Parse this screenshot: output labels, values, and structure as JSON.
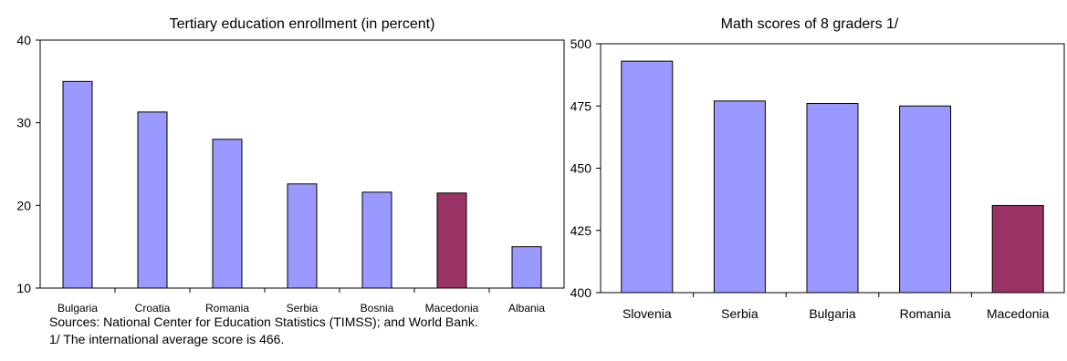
{
  "colors": {
    "bar": "#9999ff",
    "highlight": "#993366",
    "axis": "#000000"
  },
  "chart_data": [
    {
      "type": "bar",
      "title": "Tertiary education enrollment (in percent)",
      "categories": [
        "Bulgaria",
        "Croatia",
        "Romania",
        "Serbia",
        "Bosnia",
        "Macedonia",
        "Albania"
      ],
      "values": [
        35,
        31.3,
        28,
        22.6,
        21.6,
        21.5,
        15
      ],
      "highlight": "Macedonia",
      "ylim": [
        10,
        40
      ],
      "yticks": [
        10,
        20,
        30,
        40
      ],
      "grid": false
    },
    {
      "type": "bar",
      "title": "Math scores of 8 graders 1/",
      "categories": [
        "Slovenia",
        "Serbia",
        "Bulgaria",
        "Romania",
        "Macedonia"
      ],
      "values": [
        493,
        477,
        476,
        475,
        435
      ],
      "highlight": "Macedonia",
      "ylim": [
        400,
        500
      ],
      "yticks": [
        400,
        425,
        450,
        475,
        500
      ],
      "grid": false
    }
  ],
  "notes": {
    "sources": "Sources: National Center for Education Statistics (TIMSS); and World Bank.",
    "footnote": "1/ The international average score is 466."
  }
}
